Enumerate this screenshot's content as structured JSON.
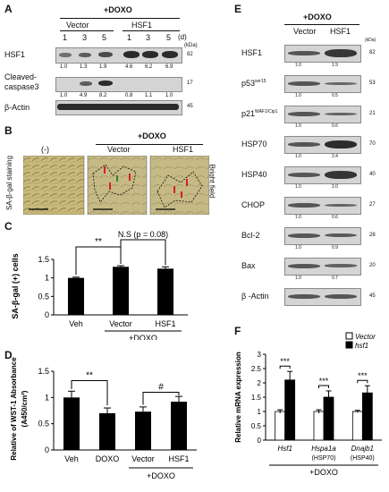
{
  "panels": {
    "A": {
      "letter": "A",
      "treatment": "+DOXO",
      "groups": [
        "Vector",
        "HSF1"
      ],
      "doses": [
        "1",
        "3",
        "5",
        "1",
        "3",
        "5"
      ],
      "dose_unit": "(d)",
      "kda": "(kDa)",
      "rows": [
        {
          "label": "HSF1",
          "kda": "82",
          "values": [
            "1.0",
            "1.3",
            "1.9",
            "4.6",
            "6.2",
            "6.9"
          ]
        },
        {
          "label": "Cleaved-",
          "label2": "caspase3",
          "kda": "17",
          "values": [
            "1.0",
            "4.9",
            "8.2",
            "0.8",
            "1.1",
            "1.0"
          ]
        },
        {
          "label": "β-Actin",
          "kda": "45",
          "values": []
        }
      ]
    },
    "B": {
      "letter": "B",
      "treatment": "+DOXO",
      "neg": "(-)",
      "groups": [
        "Vector",
        "HSF1"
      ],
      "ylabel": "SA-β-gal  staining",
      "side": "Bright field"
    },
    "C": {
      "letter": "C"
    },
    "D": {
      "letter": "D"
    },
    "E": {
      "letter": "E",
      "treatment": "+DOXO",
      "groups": [
        "Vector",
        "HSF1"
      ],
      "kda": "(kDa)",
      "rows": [
        {
          "label": "HSF1",
          "kda": "82",
          "values": [
            "1.0",
            "1.9"
          ]
        },
        {
          "label": "p53",
          "sup": "ser15",
          "kda": "53",
          "values": [
            "1.0",
            "0.5"
          ]
        },
        {
          "label": "p21",
          "sup": "WAF1/Cip1",
          "kda": "21",
          "values": [
            "1.0",
            "0.6"
          ]
        },
        {
          "label": "HSP70",
          "kda": "70",
          "values": [
            "1.0",
            "2.4"
          ]
        },
        {
          "label": "HSP40",
          "kda": "40",
          "values": [
            "1.0",
            "2.0"
          ]
        },
        {
          "label": "CHOP",
          "kda": "27",
          "values": [
            "1.0",
            "0.6"
          ]
        },
        {
          "label": "Bcl-2",
          "kda": "28",
          "values": [
            "1.0",
            "0.9"
          ]
        },
        {
          "label": "Bax",
          "kda": "20",
          "values": [
            "1.0",
            "0.7"
          ]
        },
        {
          "label": "β -Actin",
          "kda": "45",
          "values": []
        }
      ]
    },
    "F": {
      "letter": "F"
    }
  },
  "chart_data": [
    {
      "panel": "C",
      "type": "bar",
      "categories": [
        "Veh",
        "Vector",
        "HSF1"
      ],
      "values": [
        1.0,
        1.3,
        1.25
      ],
      "errors": [
        0.02,
        0.03,
        0.05
      ],
      "ylabel": "SA-β-gal (+) cells",
      "ylim": [
        0,
        1.5
      ],
      "yticks": [
        "0",
        "0.5",
        "1",
        "1.5"
      ],
      "group_label": "+DOXO",
      "annotations": [
        "**",
        "N.S (p = 0.08)"
      ]
    },
    {
      "panel": "D",
      "type": "bar",
      "categories": [
        "Veh",
        "DOXO",
        "Vector",
        "HSF1"
      ],
      "values": [
        1.0,
        0.7,
        0.73,
        0.92
      ],
      "errors": [
        0.12,
        0.1,
        0.09,
        0.1
      ],
      "ylabel": "Relative of WST-1 Absorbance",
      "ylabel2": "(A450/cm²)",
      "ylim": [
        0,
        1.5
      ],
      "yticks": [
        "0",
        "0.5",
        "1",
        "1.5"
      ],
      "group_label": "+DOXO",
      "annotations": [
        "**",
        "#"
      ]
    },
    {
      "panel": "F",
      "type": "bar",
      "categories": [
        "Hsf1",
        "Hspa1a",
        "Dnajb1"
      ],
      "subcategories": [
        "",
        "(HSP70)",
        "(HSP40)"
      ],
      "series": [
        {
          "name": "Vector",
          "values": [
            1.0,
            1.0,
            1.0
          ],
          "errors": [
            0.06,
            0.06,
            0.04
          ]
        },
        {
          "name": "hsf1",
          "values": [
            2.1,
            1.5,
            1.65
          ],
          "errors": [
            0.3,
            0.22,
            0.25
          ]
        }
      ],
      "ylabel": "Relative mRNA expression",
      "ylim": [
        0,
        3
      ],
      "yticks": [
        "0",
        "0.5",
        "1",
        "1.5",
        "2",
        "2.5",
        "3"
      ],
      "group_label": "+DOXO",
      "annotations": [
        "***",
        "***",
        "***"
      ]
    }
  ]
}
